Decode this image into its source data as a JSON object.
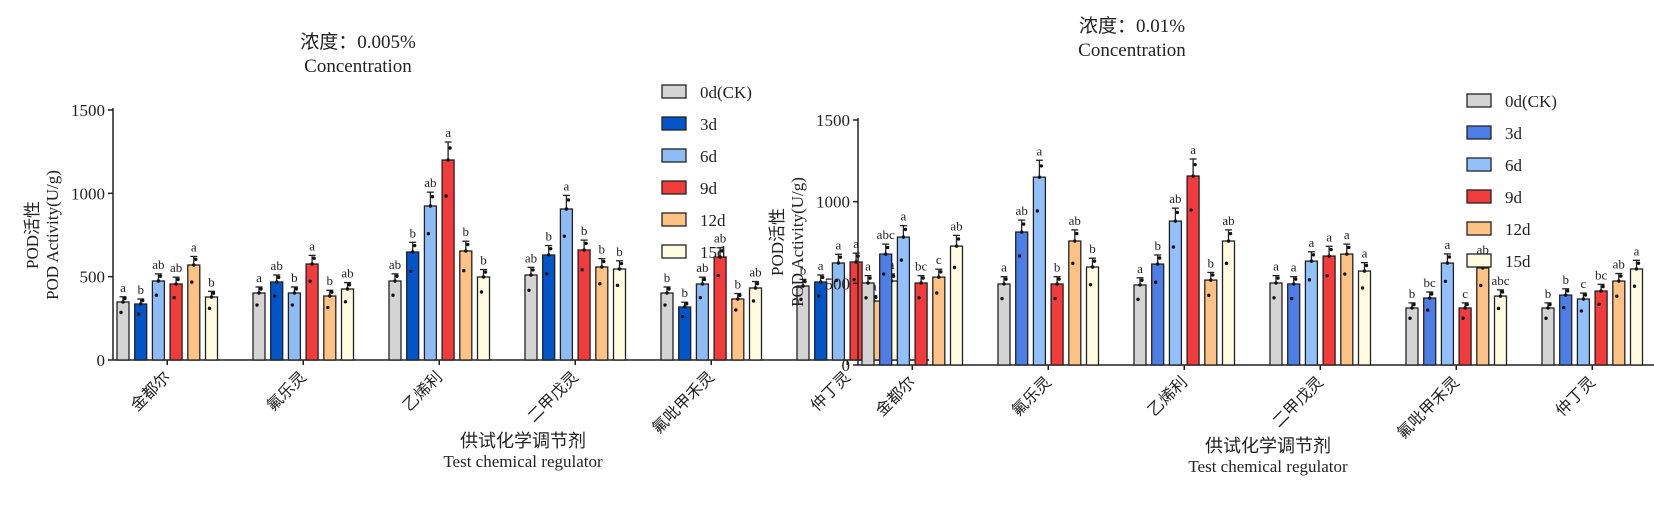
{
  "chart_data": [
    {
      "type": "bar",
      "title": "浓度：0.005%",
      "subtitle": "Concentration",
      "xlabel": "供试化学调节剂",
      "xlabel_en": "Test chemical regulator",
      "ylabel": "POD活性",
      "ylabel_en": "POD Activity(U/g)",
      "ylim": [
        0,
        1500
      ],
      "yticks": [
        0,
        500,
        1000,
        1500
      ],
      "grid": false,
      "legend_position": "right",
      "categories": [
        "金都尔",
        "氟乐灵",
        "乙烯利",
        "二甲戊灵",
        "氟吡甲禾灵",
        "仲丁灵"
      ],
      "series": [
        {
          "name": "0d(CK)",
          "color": "#d4d4d4",
          "values": [
            348,
            402,
            474,
            510,
            402,
            444
          ],
          "letters": [
            "a",
            "a",
            "ab",
            "ab",
            "b",
            "b"
          ]
        },
        {
          "name": "3d",
          "color": "#0055c8",
          "values": [
            336,
            468,
            648,
            630,
            318,
            468
          ],
          "letters": [
            "b",
            "ab",
            "b",
            "b",
            "b",
            "a"
          ]
        },
        {
          "name": "6d",
          "color": "#8fbcf5",
          "values": [
            474,
            402,
            924,
            906,
            456,
            582
          ],
          "letters": [
            "ab",
            "b",
            "ab",
            "a",
            "ab",
            "a"
          ]
        },
        {
          "name": "9d",
          "color": "#f23c3c",
          "values": [
            456,
            576,
            1200,
            660,
            618,
            588
          ],
          "letters": [
            "ab",
            "a",
            "a",
            "b",
            "ab",
            "a"
          ]
        },
        {
          "name": "12d",
          "color": "#ffc285",
          "values": [
            570,
            384,
            654,
            558,
            366,
            354
          ],
          "letters": [
            "a",
            "b",
            "b",
            "b",
            "b",
            "a"
          ]
        },
        {
          "name": "15d",
          "color": "#fffbe0",
          "values": [
            378,
            426,
            498,
            546,
            432,
            474
          ],
          "letters": [
            "b",
            "ab",
            "b",
            "b",
            "ab",
            "a"
          ]
        }
      ]
    },
    {
      "type": "bar",
      "title": "浓度：0.01%",
      "subtitle": "Concentration",
      "xlabel": "供试化学调节剂",
      "xlabel_en": "Test chemical regulator",
      "ylabel": "POD活性",
      "ylabel_en": "POD Activity(U/g)",
      "ylim": [
        0,
        1500
      ],
      "yticks": [
        0,
        500,
        1000,
        1500
      ],
      "grid": false,
      "legend_position": "right",
      "categories": [
        "金都尔",
        "氟乐灵",
        "乙烯利",
        "二甲戊灵",
        "氟吡甲禾灵",
        "仲丁灵"
      ],
      "series": [
        {
          "name": "0d(CK)",
          "color": "#d4d4d4",
          "values": [
            502,
            496,
            490,
            502,
            349,
            349
          ],
          "letters": [
            "a",
            "a",
            "a",
            "a",
            "b",
            "b"
          ]
        },
        {
          "name": "3d",
          "color": "#4d7ee8",
          "values": [
            679,
            814,
            618,
            496,
            410,
            428
          ],
          "letters": [
            "abc",
            "ab",
            "b",
            "a",
            "bc",
            "b"
          ]
        },
        {
          "name": "6d",
          "color": "#92c0fa",
          "values": [
            783,
            1150,
            881,
            636,
            624,
            404
          ],
          "letters": [
            "a",
            "a",
            "ab",
            "a",
            "a",
            "c"
          ]
        },
        {
          "name": "9d",
          "color": "#f23c3c",
          "values": [
            502,
            496,
            1157,
            667,
            349,
            453
          ],
          "letters": [
            "bc",
            "b",
            "a",
            "a",
            "c",
            "bc"
          ]
        },
        {
          "name": "12d",
          "color": "#ffc285",
          "values": [
            538,
            759,
            520,
            679,
            594,
            514
          ],
          "letters": [
            "c",
            "ab",
            "b",
            "a",
            "ab",
            "ab"
          ]
        },
        {
          "name": "15d",
          "color": "#fffbe0",
          "values": [
            728,
            600,
            759,
            575,
            422,
            588
          ],
          "letters": [
            "ab",
            "b",
            "ab",
            "a",
            "abc",
            "a"
          ]
        }
      ]
    }
  ]
}
